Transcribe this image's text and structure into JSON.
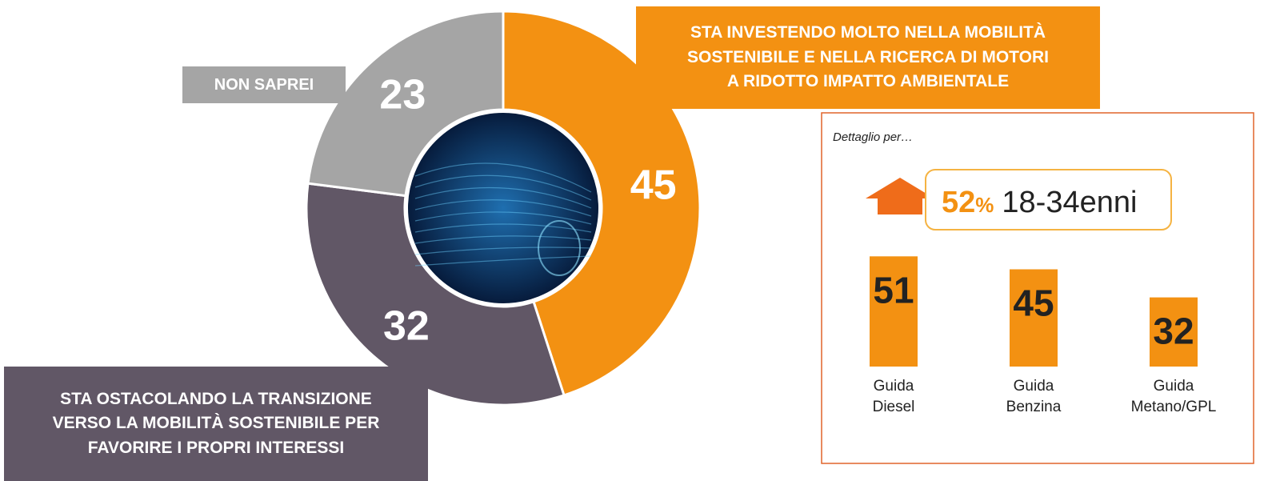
{
  "chart_data": [
    {
      "type": "pie",
      "categories": [
        "STA INVESTENDO MOLTO NELLA MOBILITÀ\nSOSTENIBILE E NELLA RICERCA DI MOTORI\nA RIDOTTO IMPATTO AMBIENTALE",
        "STA OSTACOLANDO LA TRANSIZIONE\nVERSO LA MOBILITÀ SOSTENIBILE PER\nFAVORIRE I PROPRI INTERESSI",
        "NON SAPREI"
      ],
      "values": [
        45,
        32,
        23
      ],
      "colors": [
        "#f39112",
        "#615766",
        "#a5a5a5"
      ]
    },
    {
      "type": "bar",
      "title": "Dettaglio per…",
      "highlight": {
        "value": 52,
        "unit": "%",
        "label": "18-34enni"
      },
      "categories": [
        "Guida\nDiesel",
        "Guida\nBenzina",
        "Guida\nMetano/GPL"
      ],
      "values": [
        51,
        45,
        32
      ],
      "color": "#f39112"
    }
  ]
}
